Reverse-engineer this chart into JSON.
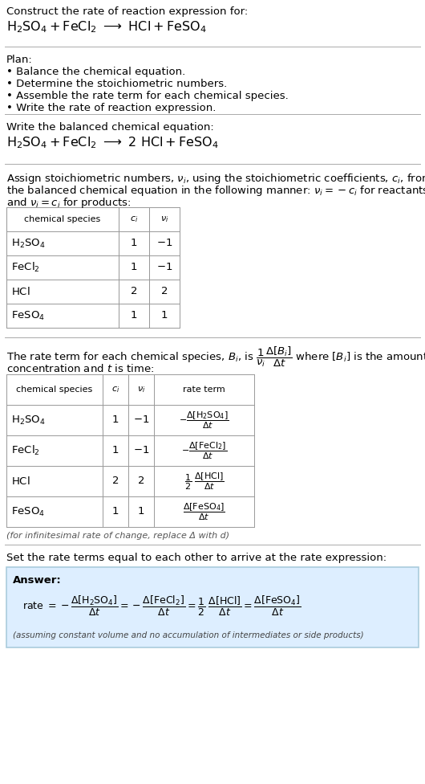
{
  "bg_color": "#ffffff",
  "text_color": "#000000",
  "answer_bg": "#ddeeff",
  "answer_border": "#aaccdd",
  "title_text": "Construct the rate of reaction expression for:",
  "plan_header": "Plan:",
  "plan_items": [
    "• Balance the chemical equation.",
    "• Determine the stoichiometric numbers.",
    "• Assemble the rate term for each chemical species.",
    "• Write the rate of reaction expression."
  ],
  "balanced_header": "Write the balanced chemical equation:",
  "stoich_line1": "Assign stoichiometric numbers, $\\nu_i$, using the stoichiometric coefficients, $c_i$, from",
  "stoich_line2": "the balanced chemical equation in the following manner: $\\nu_i = -c_i$ for reactants",
  "stoich_line3": "and $\\nu_i = c_i$ for products:",
  "rate_line1": "The rate term for each chemical species, $B_i$, is $\\dfrac{1}{\\nu_i}\\dfrac{\\Delta[B_i]}{\\Delta t}$ where $[B_i]$ is the amount",
  "rate_line2": "concentration and $t$ is time:",
  "infinitesimal_note": "(for infinitesimal rate of change, replace Δ with d)",
  "set_equal_header": "Set the rate terms equal to each other to arrive at the rate expression:",
  "answer_label": "Answer:",
  "answer_note": "(assuming constant volume and no accumulation of intermediates or side products)",
  "font_size": 9.5,
  "font_size_small": 8.0,
  "font_size_reaction": 11.5,
  "separator_color": "#aaaaaa",
  "table_line_color": "#999999"
}
